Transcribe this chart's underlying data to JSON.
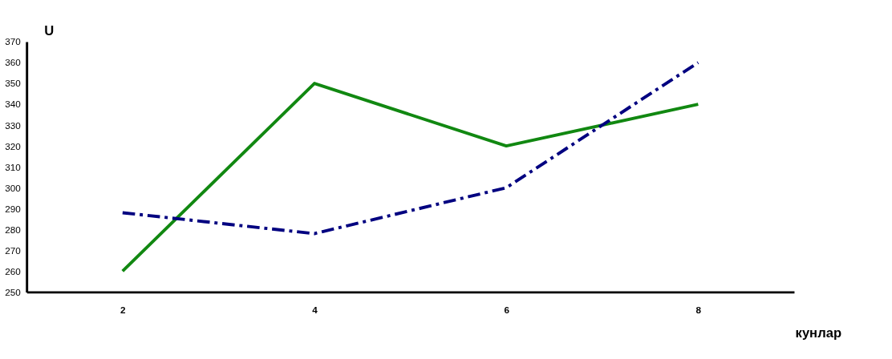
{
  "chart_data": {
    "type": "line",
    "xlabel": "кунлар",
    "ylabel": "U",
    "categories": [
      "2",
      "4",
      "6",
      "8"
    ],
    "series": [
      {
        "color": "#118811",
        "line_style": "solid",
        "values": [
          260,
          350,
          320,
          340
        ]
      },
      {
        "color": "#000080",
        "line_style": "dashed",
        "values": [
          288,
          278,
          300,
          360
        ]
      }
    ],
    "ylim": [
      250,
      370
    ],
    "yticks": [
      250,
      260,
      270,
      280,
      290,
      300,
      310,
      320,
      330,
      340,
      350,
      360,
      370
    ],
    "grid": false,
    "marker": "none"
  }
}
